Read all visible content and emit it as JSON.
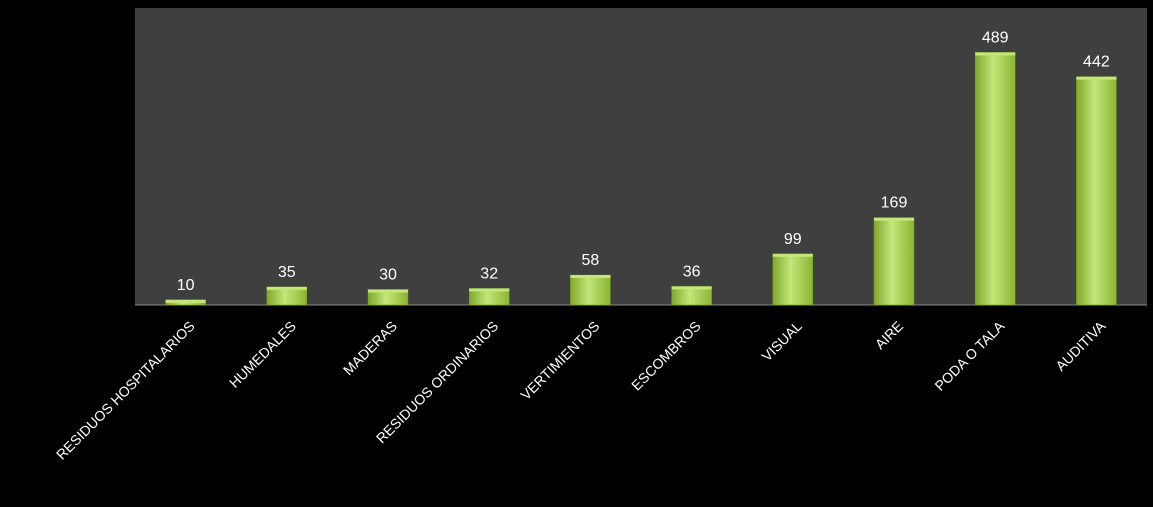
{
  "chart_data": {
    "type": "bar",
    "categories": [
      "RESIDUOS HOSPITALARIOS",
      "HUMEDALES",
      "MADERAS",
      "RESIDUOS ORDINARIOS",
      "VERTIMIENTOS",
      "ESCOMBROS",
      "VISUAL",
      "AIRE",
      "PODA O TALA",
      "AUDITIVA"
    ],
    "values": [
      10,
      35,
      30,
      32,
      58,
      36,
      99,
      169,
      489,
      442
    ],
    "title": "",
    "xlabel": "",
    "ylabel": "",
    "ylim": [
      0,
      575
    ],
    "grid": false,
    "legend": "none",
    "colors": {
      "page_background": "#000000",
      "plot_background": "#3f3f3f",
      "bar_light": "#c4e67a",
      "bar_mid": "#9cc940",
      "bar_dark": "#6f9a1e",
      "text": "#ffffff"
    }
  }
}
